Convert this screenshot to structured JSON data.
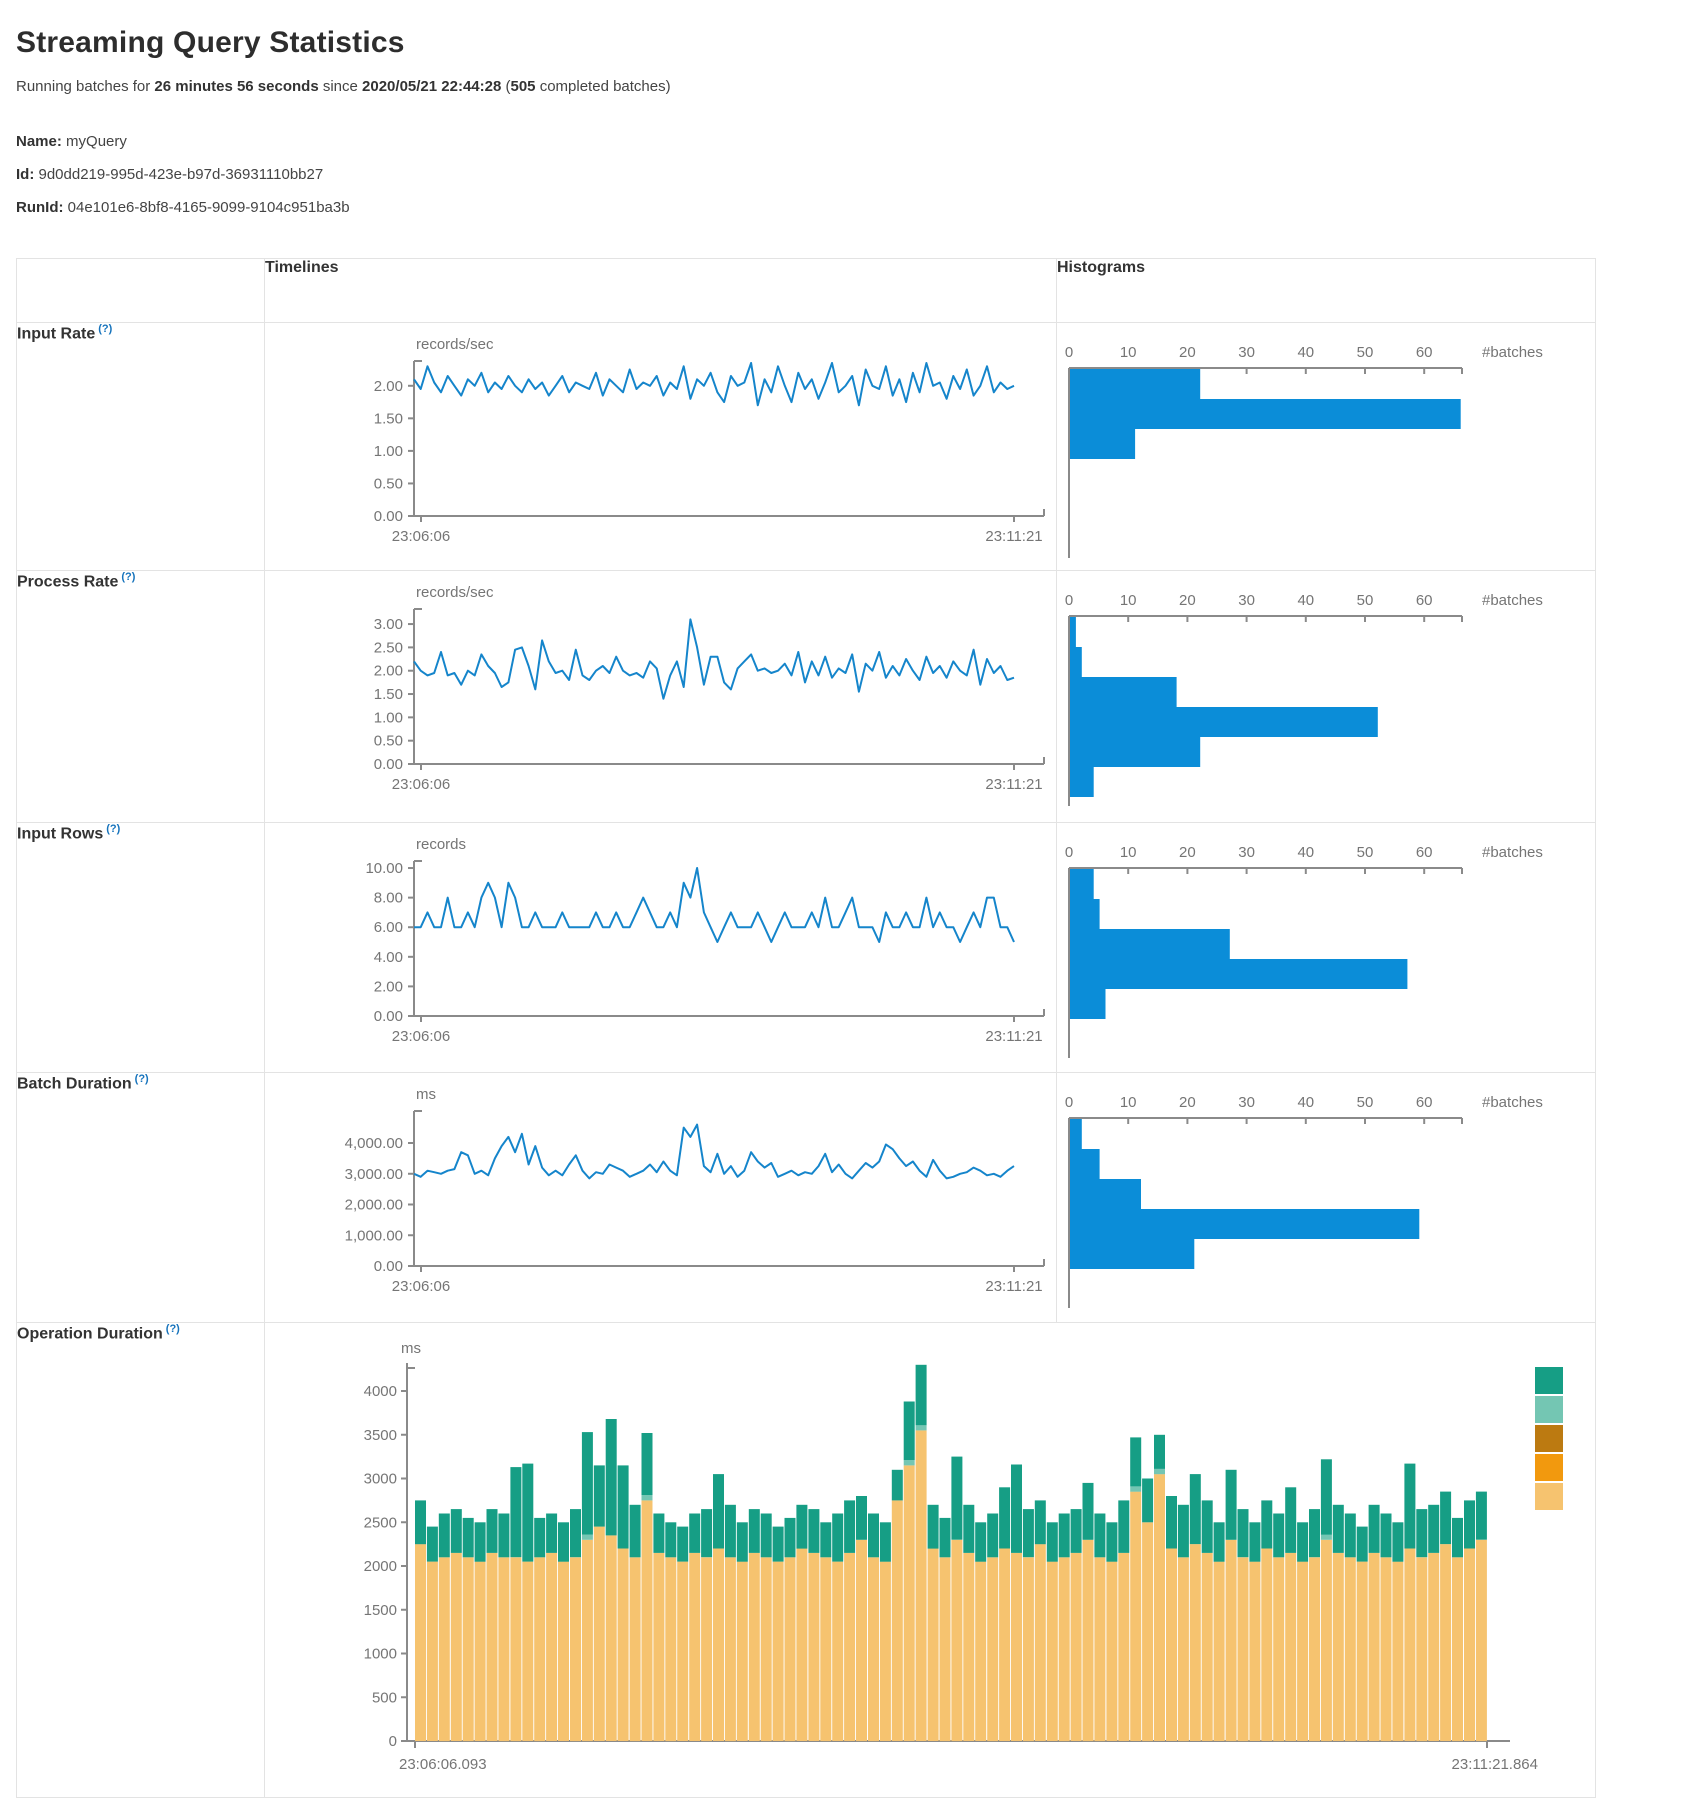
{
  "page": {
    "title": "Streaming Query Statistics"
  },
  "subtitle": {
    "text_1": "Running batches for ",
    "duration": "26 minutes 56 seconds",
    "text_2": " since ",
    "start_time": "2020/05/21 22:44:28",
    "text_3": " (",
    "completed_batches": "505",
    "text_4": " completed batches)"
  },
  "query_info": {
    "name_label": "Name:",
    "name_value": "myQuery",
    "id_label": "Id:",
    "id_value": "9d0dd219-995d-423e-b97d-36931110bb27",
    "runid_label": "RunId:",
    "runid_value": "04e101e6-8bf8-4165-9099-9104c951ba3b"
  },
  "table": {
    "headers": {
      "timelines": "Timelines",
      "histograms": "Histograms"
    },
    "rows": [
      {
        "label": "Input Rate",
        "help": "(?)"
      },
      {
        "label": "Process Rate",
        "help": "(?)"
      },
      {
        "label": "Input Rows",
        "help": "(?)"
      },
      {
        "label": "Batch Duration",
        "help": "(?)"
      },
      {
        "label": "Operation Duration",
        "help": "(?)"
      }
    ]
  },
  "colors": {
    "timeline_line": "#1585cb",
    "histogram_bar": "#0b8dd8",
    "help_link": "#1673bc",
    "axis": "#8a8a8a"
  },
  "chart_data": [
    {
      "id": "input_rate_timeline",
      "type": "line",
      "unit": "records/sec",
      "color": "#1585cb",
      "x_start_label": "23:06:06",
      "x_end_label": "23:11:21",
      "ytick_values": [
        0,
        0.5,
        1,
        1.5,
        2
      ],
      "ytick_labels": [
        "0.00",
        "0.50",
        "1.00",
        "1.50",
        "2.00"
      ],
      "ymax": 2.35,
      "values": [
        2.1,
        1.95,
        2.3,
        2.05,
        1.9,
        2.15,
        2.0,
        1.85,
        2.1,
        2.0,
        2.2,
        1.9,
        2.05,
        1.95,
        2.15,
        2.0,
        1.9,
        2.1,
        1.95,
        2.05,
        1.85,
        2.0,
        2.15,
        1.9,
        2.05,
        2.0,
        1.95,
        2.2,
        1.85,
        2.1,
        2.0,
        1.9,
        2.25,
        1.95,
        2.05,
        2.0,
        2.15,
        1.85,
        2.05,
        1.95,
        2.3,
        1.8,
        2.1,
        2.0,
        2.2,
        1.9,
        1.75,
        2.15,
        2.0,
        2.05,
        2.35,
        1.7,
        2.1,
        1.9,
        2.3,
        2.0,
        1.75,
        2.2,
        1.95,
        2.1,
        1.8,
        2.05,
        2.35,
        1.9,
        2.0,
        2.15,
        1.7,
        2.25,
        2.0,
        1.95,
        2.3,
        1.85,
        2.1,
        1.75,
        2.2,
        1.9,
        2.35,
        2.0,
        2.05,
        1.8,
        2.15,
        1.95,
        2.25,
        1.85,
        2.0,
        2.3,
        1.9,
        2.05,
        1.95,
        2.0
      ]
    },
    {
      "id": "input_rate_histogram",
      "type": "bar-horizontal",
      "unit": "#batches",
      "color": "#0b8dd8",
      "xtick_values": [
        0,
        10,
        20,
        30,
        40,
        50,
        60
      ],
      "xmax": 66.5,
      "values": [
        22,
        66,
        11
      ]
    },
    {
      "id": "process_rate_timeline",
      "type": "line",
      "unit": "records/sec",
      "color": "#1585cb",
      "x_start_label": "23:06:06",
      "x_end_label": "23:11:21",
      "ytick_values": [
        0,
        0.5,
        1,
        1.5,
        2,
        2.5,
        3
      ],
      "ytick_labels": [
        "0.00",
        "0.50",
        "1.00",
        "1.50",
        "2.00",
        "2.50",
        "3.00"
      ],
      "ymax": 3.28,
      "values": [
        2.2,
        2.0,
        1.9,
        1.95,
        2.4,
        1.9,
        1.95,
        1.7,
        2.0,
        1.9,
        2.35,
        2.1,
        1.95,
        1.65,
        1.75,
        2.45,
        2.5,
        2.1,
        1.6,
        2.65,
        2.2,
        1.95,
        2.0,
        1.8,
        2.45,
        1.9,
        1.8,
        2.0,
        2.1,
        1.95,
        2.3,
        2.0,
        1.9,
        1.95,
        1.85,
        2.2,
        2.05,
        1.4,
        1.9,
        2.2,
        1.65,
        3.1,
        2.5,
        1.7,
        2.3,
        2.3,
        1.75,
        1.6,
        2.05,
        2.2,
        2.35,
        2.0,
        2.05,
        1.95,
        2.0,
        2.15,
        1.9,
        2.4,
        1.75,
        2.2,
        1.9,
        2.3,
        1.85,
        2.05,
        1.95,
        2.35,
        1.55,
        2.15,
        2.0,
        2.4,
        1.85,
        2.1,
        1.9,
        2.25,
        2.0,
        1.8,
        2.3,
        1.95,
        2.1,
        1.85,
        2.2,
        2.0,
        1.9,
        2.45,
        1.7,
        2.25,
        1.95,
        2.1,
        1.8,
        1.85
      ]
    },
    {
      "id": "process_rate_histogram",
      "type": "bar-horizontal",
      "unit": "#batches",
      "color": "#0b8dd8",
      "xtick_values": [
        0,
        10,
        20,
        30,
        40,
        50,
        60
      ],
      "xmax": 66.5,
      "values": [
        1,
        2,
        18,
        52,
        22,
        4
      ]
    },
    {
      "id": "input_rows_timeline",
      "type": "line",
      "unit": "records",
      "color": "#1585cb",
      "x_start_label": "23:06:06",
      "x_end_label": "23:11:21",
      "ytick_values": [
        0,
        2,
        4,
        6,
        8,
        10
      ],
      "ytick_labels": [
        "0.00",
        "2.00",
        "4.00",
        "6.00",
        "8.00",
        "10.00"
      ],
      "ymax": 10.34,
      "values": [
        6,
        6,
        7,
        6,
        6,
        8,
        6,
        6,
        7,
        6,
        8,
        9,
        8,
        6,
        9,
        8,
        6,
        6,
        7,
        6,
        6,
        6,
        7,
        6,
        6,
        6,
        6,
        7,
        6,
        6,
        7,
        6,
        6,
        7,
        8,
        7,
        6,
        6,
        7,
        6,
        9,
        8,
        10,
        7,
        6,
        5,
        6,
        7,
        6,
        6,
        6,
        7,
        6,
        5,
        6,
        7,
        6,
        6,
        6,
        7,
        6,
        8,
        6,
        6,
        7,
        8,
        6,
        6,
        6,
        5,
        7,
        6,
        6,
        7,
        6,
        6,
        8,
        6,
        7,
        6,
        6,
        5,
        6,
        7,
        6,
        8,
        8,
        6,
        6,
        5
      ]
    },
    {
      "id": "input_rows_histogram",
      "type": "bar-horizontal",
      "unit": "#batches",
      "color": "#0b8dd8",
      "xtick_values": [
        0,
        10,
        20,
        30,
        40,
        50,
        60
      ],
      "xmax": 66.5,
      "values": [
        4,
        5,
        27,
        57,
        6
      ]
    },
    {
      "id": "batch_duration_timeline",
      "type": "line",
      "unit": "ms",
      "color": "#1585cb",
      "x_start_label": "23:06:06",
      "x_end_label": "23:11:21",
      "ytick_values": [
        0,
        1000,
        2000,
        3000,
        4000
      ],
      "ytick_labels": [
        "0.00",
        "1,000.00",
        "2,000.00",
        "3,000.00",
        "4,000.00"
      ],
      "ymax": 4976,
      "values": [
        3000,
        2900,
        3100,
        3050,
        3000,
        3100,
        3150,
        3700,
        3600,
        3000,
        3100,
        2950,
        3500,
        3900,
        4200,
        3700,
        4300,
        3300,
        3900,
        3200,
        2950,
        3100,
        2950,
        3300,
        3600,
        3100,
        2850,
        3050,
        3000,
        3300,
        3200,
        3100,
        2900,
        3000,
        3100,
        3300,
        3050,
        3400,
        3100,
        2950,
        4500,
        4200,
        4600,
        3250,
        3050,
        3650,
        3000,
        3250,
        2900,
        3100,
        3700,
        3400,
        3200,
        3350,
        2900,
        3000,
        3100,
        2950,
        3050,
        3000,
        3250,
        3650,
        3050,
        3300,
        3000,
        2850,
        3100,
        3350,
        3200,
        3400,
        3950,
        3800,
        3500,
        3250,
        3400,
        3100,
        2900,
        3450,
        3100,
        2850,
        2900,
        3000,
        3050,
        3200,
        3100,
        2950,
        3000,
        2900,
        3100,
        3250
      ]
    },
    {
      "id": "batch_duration_histogram",
      "type": "bar-horizontal",
      "unit": "#batches",
      "color": "#0b8dd8",
      "xtick_values": [
        0,
        10,
        20,
        30,
        40,
        50,
        60
      ],
      "xmax": 66.5,
      "values": [
        2,
        5,
        12,
        59,
        21
      ]
    },
    {
      "id": "operation_duration",
      "type": "stacked-bar",
      "unit": "ms",
      "x_start_label": "23:06:06.093",
      "x_end_label": "23:11:21.864",
      "ytick_values": [
        0,
        500,
        1000,
        1500,
        2000,
        2500,
        3000,
        3500,
        4000
      ],
      "ytick_labels": [
        "0",
        "500",
        "1000",
        "1500",
        "2000",
        "2500",
        "3000",
        "3500",
        "4000"
      ],
      "series": [
        {
          "name": "bottom-tan-segment",
          "color": "#f6c36f",
          "values": [
            2250,
            2050,
            2100,
            2150,
            2100,
            2050,
            2150,
            2100,
            2100,
            2050,
            2100,
            2150,
            2050,
            2100,
            2300,
            2450,
            2350,
            2200,
            2100,
            2750,
            2150,
            2100,
            2050,
            2150,
            2100,
            2200,
            2100,
            2050,
            2150,
            2100,
            2050,
            2100,
            2200,
            2150,
            2100,
            2050,
            2150,
            2300,
            2100,
            2050,
            2750,
            3150,
            3550,
            2200,
            2100,
            2300,
            2150,
            2050,
            2100,
            2200,
            2150,
            2100,
            2250,
            2050,
            2100,
            2150,
            2300,
            2100,
            2050,
            2150,
            2850,
            2500,
            3050,
            2200,
            2100,
            2250,
            2150,
            2050,
            2300,
            2100,
            2050,
            2200,
            2100,
            2150,
            2050,
            2100,
            2300,
            2150,
            2100,
            2050,
            2150,
            2100,
            2050,
            2200,
            2100,
            2150,
            2250,
            2100,
            2200,
            2300
          ]
        },
        {
          "name": "middle-light-teal-segment",
          "color": "#74c6b3",
          "values": [
            0,
            0,
            0,
            0,
            0,
            0,
            0,
            0,
            0,
            0,
            0,
            0,
            0,
            0,
            60,
            0,
            0,
            0,
            0,
            60,
            0,
            0,
            0,
            0,
            0,
            0,
            0,
            0,
            0,
            0,
            0,
            0,
            0,
            0,
            0,
            0,
            0,
            0,
            0,
            0,
            0,
            60,
            60,
            0,
            0,
            0,
            0,
            0,
            0,
            0,
            0,
            0,
            0,
            0,
            0,
            0,
            0,
            0,
            0,
            0,
            60,
            0,
            60,
            0,
            0,
            0,
            0,
            0,
            0,
            0,
            0,
            0,
            0,
            0,
            0,
            0,
            60,
            0,
            0,
            0,
            0,
            0,
            0,
            0,
            0,
            0,
            0,
            0,
            0,
            0
          ]
        },
        {
          "name": "top-teal-segment",
          "color": "#169e85",
          "values": [
            500,
            400,
            500,
            500,
            450,
            450,
            500,
            500,
            1030,
            1120,
            450,
            450,
            450,
            550,
            1170,
            700,
            1330,
            950,
            600,
            710,
            450,
            400,
            400,
            450,
            550,
            850,
            600,
            450,
            500,
            500,
            400,
            450,
            500,
            500,
            400,
            550,
            600,
            500,
            500,
            450,
            350,
            670,
            690,
            500,
            450,
            950,
            550,
            450,
            500,
            700,
            1010,
            550,
            500,
            450,
            500,
            500,
            650,
            500,
            450,
            600,
            560,
            500,
            390,
            600,
            600,
            800,
            600,
            450,
            800,
            550,
            450,
            550,
            500,
            750,
            450,
            550,
            860,
            550,
            500,
            400,
            550,
            500,
            450,
            970,
            550,
            550,
            600,
            450,
            550,
            550
          ]
        }
      ],
      "legend": [
        {
          "name": "legend-swatch-teal",
          "color": "#169e85"
        },
        {
          "name": "legend-swatch-light-teal",
          "color": "#74c6b3"
        },
        {
          "name": "legend-swatch-brown",
          "color": "#bc7a11"
        },
        {
          "name": "legend-swatch-orange",
          "color": "#f2990e"
        },
        {
          "name": "legend-swatch-tan",
          "color": "#f6c36f"
        }
      ]
    }
  ]
}
